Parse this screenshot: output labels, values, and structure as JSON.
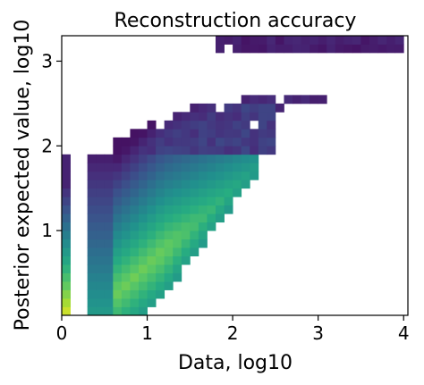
{
  "chart_data": {
    "type": "heatmap",
    "title": "Reconstruction accuracy",
    "xlabel": "Data, log10",
    "ylabel": "Posterior expected value, log10",
    "xlim": [
      0,
      4.05
    ],
    "ylim": [
      0,
      3.3
    ],
    "xticks": [
      {
        "value": 0,
        "label": "0"
      },
      {
        "value": 1,
        "label": "1"
      },
      {
        "value": 2,
        "label": "2"
      },
      {
        "value": 3,
        "label": "3"
      },
      {
        "value": 4,
        "label": "4"
      }
    ],
    "yticks": [
      {
        "value": 1,
        "label": "1"
      },
      {
        "value": 2,
        "label": "2"
      },
      {
        "value": 3,
        "label": "3"
      }
    ],
    "colormap": "viridis",
    "bin_size": 0.1,
    "grid": false,
    "data_columns": [
      0.0,
      0.3,
      0.45
    ],
    "density_ridge_slope": 1.35,
    "upper_band": {
      "x_range": [
        1.8,
        4.0
      ],
      "y_range": [
        3.15,
        3.3
      ]
    }
  }
}
